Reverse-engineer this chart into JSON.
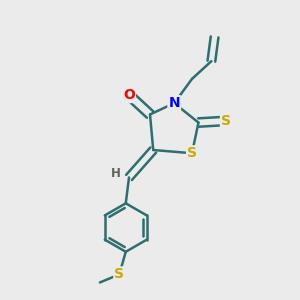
{
  "background_color": "#ebebeb",
  "bond_color": "#2d6e6e",
  "atom_colors": {
    "O": "#ff0000",
    "N": "#0000ff",
    "S": "#ccaa00",
    "H": "#606060",
    "C": "#2d6e6e"
  },
  "figsize": [
    3.0,
    3.0
  ],
  "dpi": 100
}
